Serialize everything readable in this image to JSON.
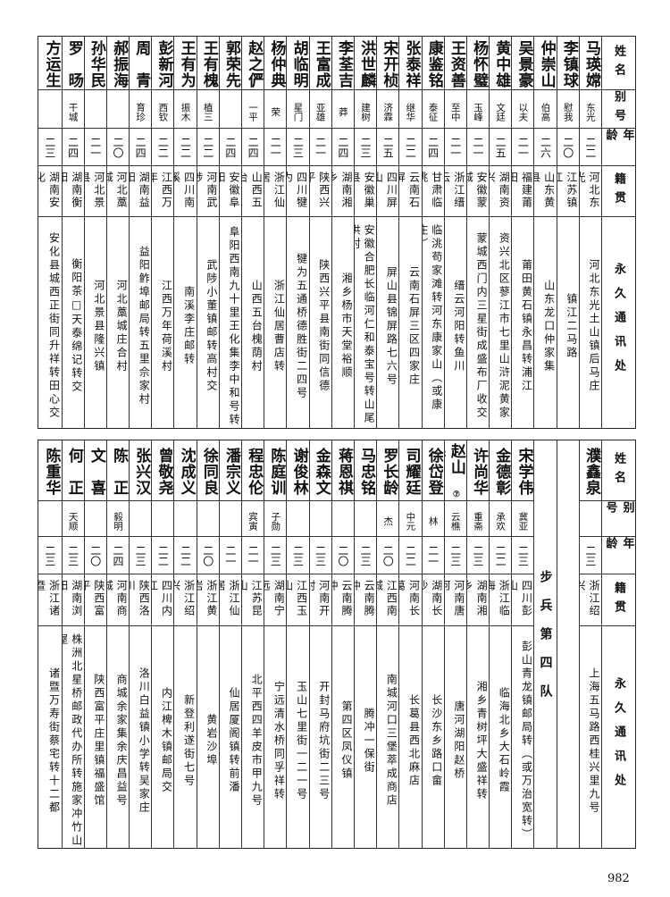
{
  "headers": {
    "name": "姓名",
    "alias": "别号",
    "age": "年龄",
    "origin": "籍贯",
    "address": "永久通讯处"
  },
  "top_table": [
    {
      "name": "马瑛嫦",
      "alias": "东光",
      "age": "二二",
      "origin": "河北东光",
      "address": "河北东光土山镇后马庄"
    },
    {
      "name": "李镇球",
      "alias": "慰我",
      "age": "二〇",
      "origin": "江苏镇江",
      "address": "镇江二马路"
    },
    {
      "name": "仲崇山",
      "alias": "伯高",
      "age": "二六",
      "origin": "山东黄县",
      "address": "山东龙口仲家集"
    },
    {
      "name": "吴景豪",
      "alias": "以夫",
      "age": "二一",
      "origin": "福建莆田",
      "address": "莆田黄石镇永昌转浦江"
    },
    {
      "name": "黄中雄",
      "alias": "文廷",
      "age": "二五",
      "origin": "湖南资兴",
      "address": "资兴北区蓼江市七里山浒泥黄家"
    },
    {
      "name": "杨怀璧",
      "alias": "玉峰",
      "age": "二一",
      "origin": "安徽蒙城",
      "address": "蒙城西门内三星街成盛布厂收交"
    },
    {
      "name": "王资善",
      "alias": "至中",
      "age": "二一",
      "origin": "浙江缙云",
      "address": "缙云河阳转鱼川"
    },
    {
      "name": "康鉴铭",
      "alias": "泰征",
      "age": "二四",
      "origin": "甘肃临洮",
      "address": "临洮苟家滩转河东康家山（或康庄）"
    },
    {
      "name": "张泰祥",
      "alias": "继华",
      "age": "二二",
      "origin": "云南石屏",
      "address": "云南石屏三区四家庄"
    },
    {
      "name": "宋开桢",
      "alias": "济霖",
      "age": "二五",
      "origin": "四川屏山",
      "address": "屏山县锦屏路七六号"
    },
    {
      "name": "洪世麟",
      "alias": "建树",
      "age": "二三",
      "origin": "安徽巢县",
      "address": "安徽合肥长临河仁和泰宝号转山尾洪村"
    },
    {
      "name": "李荃吉",
      "alias": "莽",
      "age": "二四",
      "origin": "湖南湘乡",
      "address": "湘乡杨市天堂裕顺"
    },
    {
      "name": "王富成",
      "alias": "亚雄",
      "age": "二一",
      "origin": "陕西兴平",
      "address": "陕西兴平县南街同信德"
    },
    {
      "name": "胡临明",
      "alias": "星门",
      "age": "二三",
      "origin": "四川犍为",
      "address": "犍为五通桥德胜街二四号"
    },
    {
      "name": "杨仲典",
      "alias": "荣",
      "age": "二一",
      "origin": "浙江仙居",
      "address": "浙江仙居曹店转"
    },
    {
      "name": "赵之俨",
      "alias": "一平",
      "age": "二四",
      "origin": "山西五台",
      "address": "山西五台槐荫村"
    },
    {
      "name": "郭荣先",
      "alias": "",
      "age": "二四",
      "origin": "安徽阜阳",
      "address": "阜阳西南九十里王化集李中和号转"
    },
    {
      "name": "王有槐",
      "alias": "植三",
      "age": "二二",
      "origin": "河南武陟",
      "address": "武陟小董镇邮转高村交"
    },
    {
      "name": "王有为",
      "alias": "振木",
      "age": "二二",
      "origin": "四川南溪",
      "address": "南溪李庄邮转"
    },
    {
      "name": "彭新河",
      "alias": "西钦",
      "age": "二二",
      "origin": "江西万年",
      "address": "江西万年荷溪村"
    },
    {
      "name": "周　青",
      "alias": "育珍",
      "age": "二四",
      "origin": "湖南益阳",
      "address": "益阳鲊埠邮局转五里佘家村"
    },
    {
      "name": "郝振海",
      "alias": "",
      "age": "二〇",
      "origin": "河北藁城",
      "address": "河北藁城庄合村"
    },
    {
      "name": "孙华民",
      "alias": "",
      "age": "二一",
      "origin": "河北景县",
      "address": "河北景县隆兴镇"
    },
    {
      "name": "罗　旸",
      "alias": "干城",
      "age": "二四",
      "origin": "湖南衡阳",
      "address": "衡阳茶□天泰绵记转交"
    },
    {
      "name": "方运生",
      "alias": "",
      "age": "二三",
      "origin": "湖南安化",
      "address": "安化县城西正街同升祥转田心交"
    }
  ],
  "bottom_table": [
    {
      "name": "濮鑫泉",
      "alias": "",
      "age": "二三",
      "origin": "浙江绍兴",
      "address": "上海五马路西桂兴里九号"
    },
    {
      "blank": true
    },
    {
      "section": "步兵第四队"
    },
    {
      "name": "宋学伟",
      "alias": "冀亚",
      "age": "二三",
      "origin": "四川彭山",
      "address": "彭山青龙镇邮局转（或万治宽转）"
    },
    {
      "name": "金德彰",
      "alias": "承欢",
      "age": "二二",
      "origin": "浙江临海",
      "address": "临海北乡大石岭霞"
    },
    {
      "name": "许尚华",
      "alias": "重斋",
      "age": "二三",
      "origin": "湖南湘乡",
      "address": "湘乡青树坪大盛祥转"
    },
    {
      "name": "赵山民",
      "footnote": "⑦",
      "alias": "云樵",
      "age": "二三",
      "origin": "河南唐河",
      "address": "唐河湖阳赵桥"
    },
    {
      "name": "徐岱登",
      "alias": "林",
      "age": "二一",
      "origin": "湖南长沙",
      "address": "长沙东乡路口畲"
    },
    {
      "name": "司耀廷",
      "alias": "中元",
      "age": "二二",
      "origin": "河南长葛",
      "address": "长葛县西北麻店"
    },
    {
      "name": "罗长龄",
      "alias": "杰",
      "age": "二〇",
      "origin": "江西南城",
      "address": "南城河口三堡萃成商店"
    },
    {
      "name": "马忠铭",
      "alias": "",
      "age": "二三",
      "origin": "云南腾冲",
      "address": "腾冲一保街"
    },
    {
      "name": "蒋恩祺",
      "alias": "",
      "age": "二〇",
      "origin": "云南腾冲",
      "address": "第四区凤仪镇"
    },
    {
      "name": "金森文",
      "alias": "",
      "age": "二三",
      "origin": "河南开封",
      "address": "开封马府坑街二三号"
    },
    {
      "name": "谢俊林",
      "alias": "",
      "age": "二三",
      "origin": "江西玉山",
      "address": "玉山七里街一二一号"
    },
    {
      "name": "陈庭训",
      "alias": "子勋",
      "age": "二三",
      "origin": "湖南宁远",
      "address": "宁远清水桥同孚祥转"
    },
    {
      "name": "程忠伦",
      "alias": "宾寅",
      "age": "二一",
      "origin": "江苏昆山",
      "address": "北平西四羊皮市甲九号"
    },
    {
      "name": "潘宗义",
      "alias": "",
      "age": "二一",
      "origin": "浙江仙居",
      "address": "仙居厦阁镇转前潘"
    },
    {
      "name": "徐同良",
      "alias": "",
      "age": "二〇",
      "origin": "浙江黄岩",
      "address": "黄岩沙埠"
    },
    {
      "name": "沈成义",
      "alias": "",
      "age": "二二",
      "origin": "浙江绍兴",
      "address": "新登利遂街七号"
    },
    {
      "name": "曾敬尧",
      "alias": "",
      "age": "二二",
      "origin": "四川内江",
      "address": "内江椑木镇邮局交"
    },
    {
      "name": "张兴汉",
      "alias": "",
      "age": "二三",
      "origin": "陕西洛川",
      "address": "洛川白益镇小学转吴家庄"
    },
    {
      "name": "陈　正",
      "alias": "毅明",
      "age": "二四",
      "origin": "河南商城",
      "address": "商城余家集余庆昌益号"
    },
    {
      "name": "文　喜",
      "alias": "",
      "age": "二〇",
      "origin": "陕西富平",
      "address": "陕西富平庄里镇福盛馆"
    },
    {
      "name": "何　正",
      "alias": "天顺",
      "age": "二三",
      "origin": "湖南浏阳",
      "address": "株洲北星桥邮政代办所转施家冲竹山屋"
    },
    {
      "name": "陈重华",
      "alias": "",
      "age": "二三",
      "origin": "浙江诸暨",
      "address": "诸暨万寿街蔡宅转十二都"
    }
  ],
  "page_number": "982"
}
